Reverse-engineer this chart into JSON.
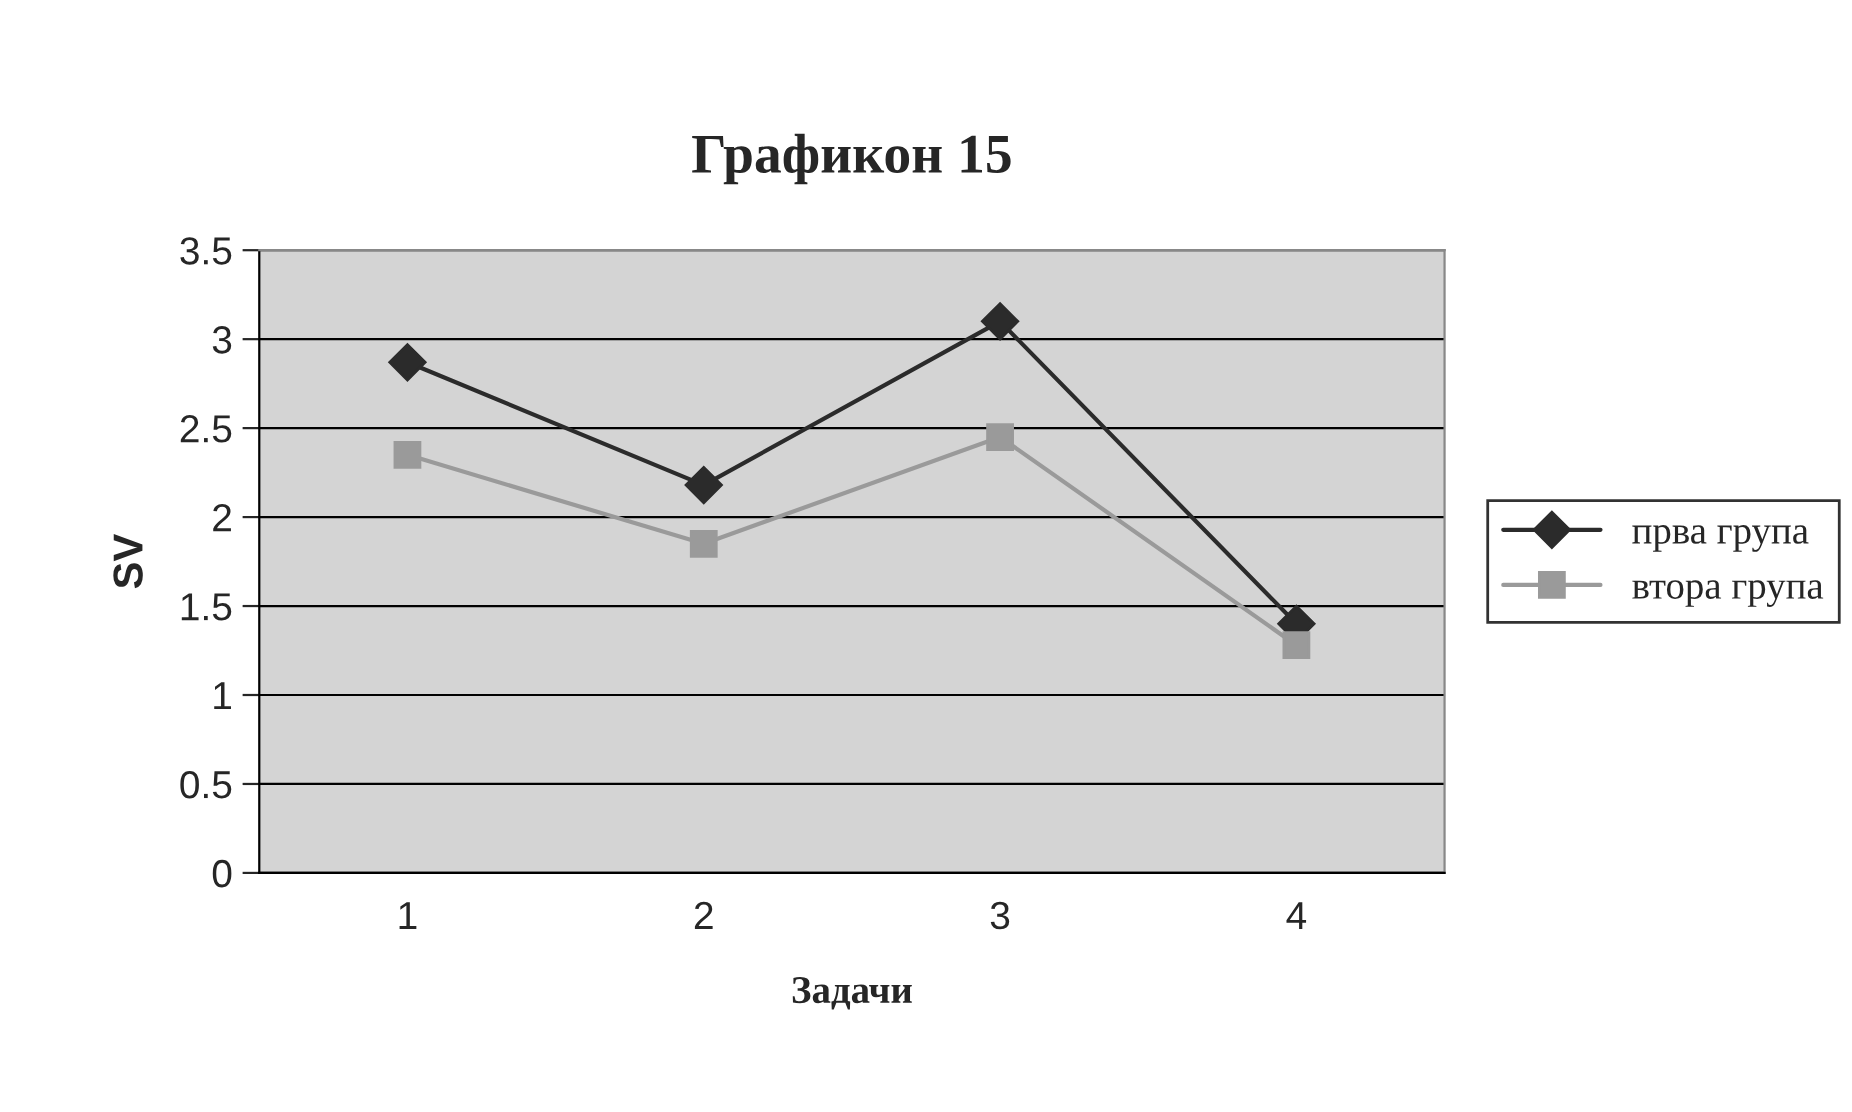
{
  "chart_data": {
    "type": "line",
    "title": "Графикон 15",
    "xlabel": "Задачи",
    "ylabel": "SV",
    "categories": [
      "1",
      "2",
      "3",
      "4"
    ],
    "series": [
      {
        "name": "прва група",
        "color": "#2b2b2b",
        "marker": "diamond",
        "values": [
          2.87,
          2.18,
          3.1,
          1.4
        ]
      },
      {
        "name": "втора група",
        "color": "#9a9a9a",
        "marker": "square",
        "values": [
          2.35,
          1.85,
          2.45,
          1.28
        ]
      }
    ],
    "ylim": [
      0,
      3.5
    ],
    "yticks": [
      0,
      0.5,
      1,
      1.5,
      2,
      2.5,
      3,
      3.5
    ],
    "grid": "y",
    "legend": "right"
  }
}
